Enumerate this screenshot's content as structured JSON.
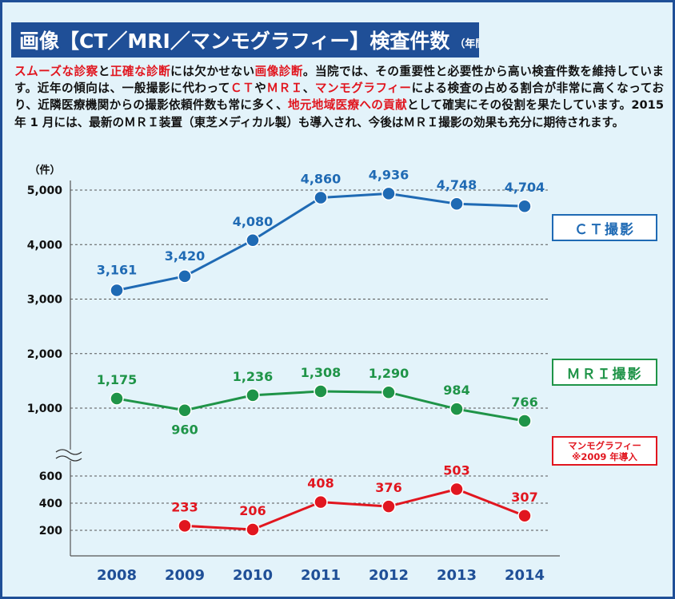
{
  "title": {
    "main": "画像【CT／MRI／マンモグラフィー】検査件数",
    "sub": "（年間）"
  },
  "intro": {
    "hl1": "スムーズな診察",
    "t1": "と",
    "hl2": "正確な診断",
    "t2": "には欠かせない",
    "hl3": "画像診断",
    "t3": "。当院では、その重要性と必要性から高い検査件数を維持しています。近年の傾向は、一般撮影に代わって",
    "hl4": "ＣＴ",
    "t4": "や",
    "hl5": "ＭＲＩ",
    "t5": "、",
    "hl6": "マンモグラフィー",
    "t6": "による検査の占める割合が非常に高くなっており、近隣医療機関からの撮影依頼件数も常に多く、",
    "hl7": "地元地域医療への貢献",
    "t7": "として確実にその役割を果たしています。2015 年 1 月には、最新のＭＲＩ装置（東芝メディカル製）も導入され、今後はＭＲＩ撮影の効果も充分に期待されます。"
  },
  "colors": {
    "ct": "#1f6ab4",
    "mri": "#1f9448",
    "mammo": "#e1161f",
    "title_bg": "#1f4f97",
    "axis_year": "#1f4f97"
  },
  "chart_data": {
    "type": "line",
    "title": "画像【CT／MRI／マンモグラフィー】検査件数（年間）",
    "ylabel": "（件）",
    "xlabel": "",
    "categories": [
      "2008",
      "2009",
      "2010",
      "2011",
      "2012",
      "2013",
      "2014"
    ],
    "axis_break": true,
    "ylim_upper": [
      1000,
      5000
    ],
    "ylim_lower": [
      200,
      600
    ],
    "yticks_upper": [
      "1,000",
      "2,000",
      "3,000",
      "4,000",
      "5,000"
    ],
    "yticks_lower": [
      "200",
      "400",
      "600"
    ],
    "grid": true,
    "series": [
      {
        "key": "ct",
        "name": "ＣＴ撮影",
        "values": [
          3161,
          3420,
          4080,
          4860,
          4936,
          4748,
          4704
        ],
        "labels": [
          "3,161",
          "3,420",
          "4,080",
          "4,860",
          "4,936",
          "4,748",
          "4,704"
        ]
      },
      {
        "key": "mri",
        "name": "ＭＲＩ撮影",
        "values": [
          1175,
          960,
          1236,
          1308,
          1290,
          984,
          766
        ],
        "labels": [
          "1,175",
          "960",
          "1,236",
          "1,308",
          "1,290",
          "984",
          "766"
        ]
      },
      {
        "key": "mammo",
        "name": "マンモグラフィー",
        "note": "※2009 年導入",
        "values": [
          null,
          233,
          206,
          408,
          376,
          503,
          307
        ],
        "labels": [
          null,
          "233",
          "206",
          "408",
          "376",
          "503",
          "307"
        ]
      }
    ]
  }
}
